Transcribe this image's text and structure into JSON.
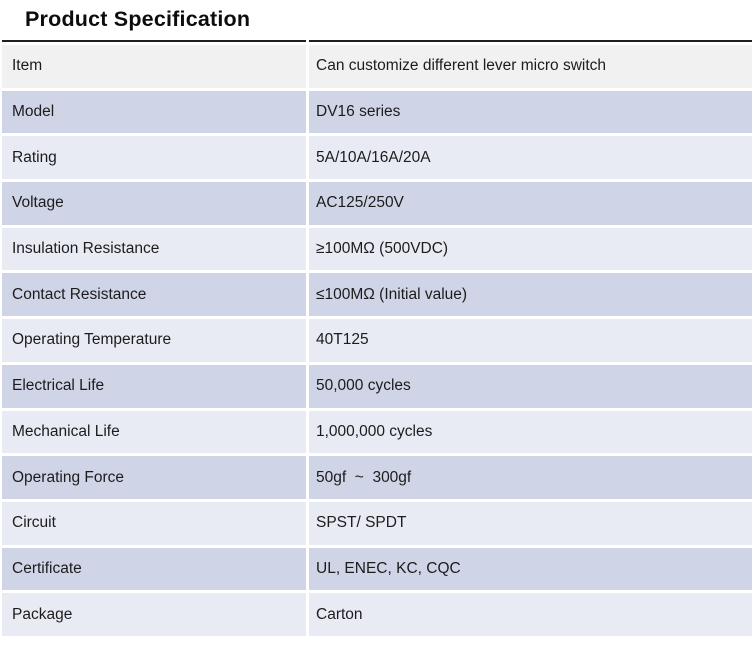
{
  "title": "Product Specification",
  "table": {
    "colors": {
      "gray": "#f1f1f2",
      "dark": "#d0d4e7",
      "light": "#e9ebf4",
      "top_border": "#1f1f1f",
      "text": "#1c1c1c",
      "gutter": "#ffffff"
    },
    "rows": [
      {
        "label": "Item",
        "value": "Can customize different lever micro switch",
        "band": "gray"
      },
      {
        "label": "Model",
        "value": "DV16 series",
        "band": "dark"
      },
      {
        "label": "Rating",
        "value": "5A/10A/16A/20A",
        "band": "light"
      },
      {
        "label": "Voltage",
        "value": "AC125/250V",
        "band": "dark"
      },
      {
        "label": "Insulation Resistance",
        "value": "≥100MΩ (500VDC)",
        "band": "light"
      },
      {
        "label": "Contact Resistance",
        "value": "≤100MΩ (Initial value)",
        "band": "dark"
      },
      {
        "label": "Operating Temperature",
        "value": "40T125",
        "band": "light"
      },
      {
        "label": "Electrical Life",
        "value": "50,000 cycles",
        "band": "dark"
      },
      {
        "label": "Mechanical Life",
        "value": "1,000,000 cycles",
        "band": "light"
      },
      {
        "label": "Operating Force",
        "value": "50gf  ~  300gf",
        "band": "dark"
      },
      {
        "label": "Circuit",
        "value": "SPST/ SPDT",
        "band": "light"
      },
      {
        "label": "Certificate",
        "value": "UL, ENEC, KC, CQC",
        "band": "dark"
      },
      {
        "label": "Package",
        "value": "Carton",
        "band": "light"
      }
    ]
  }
}
